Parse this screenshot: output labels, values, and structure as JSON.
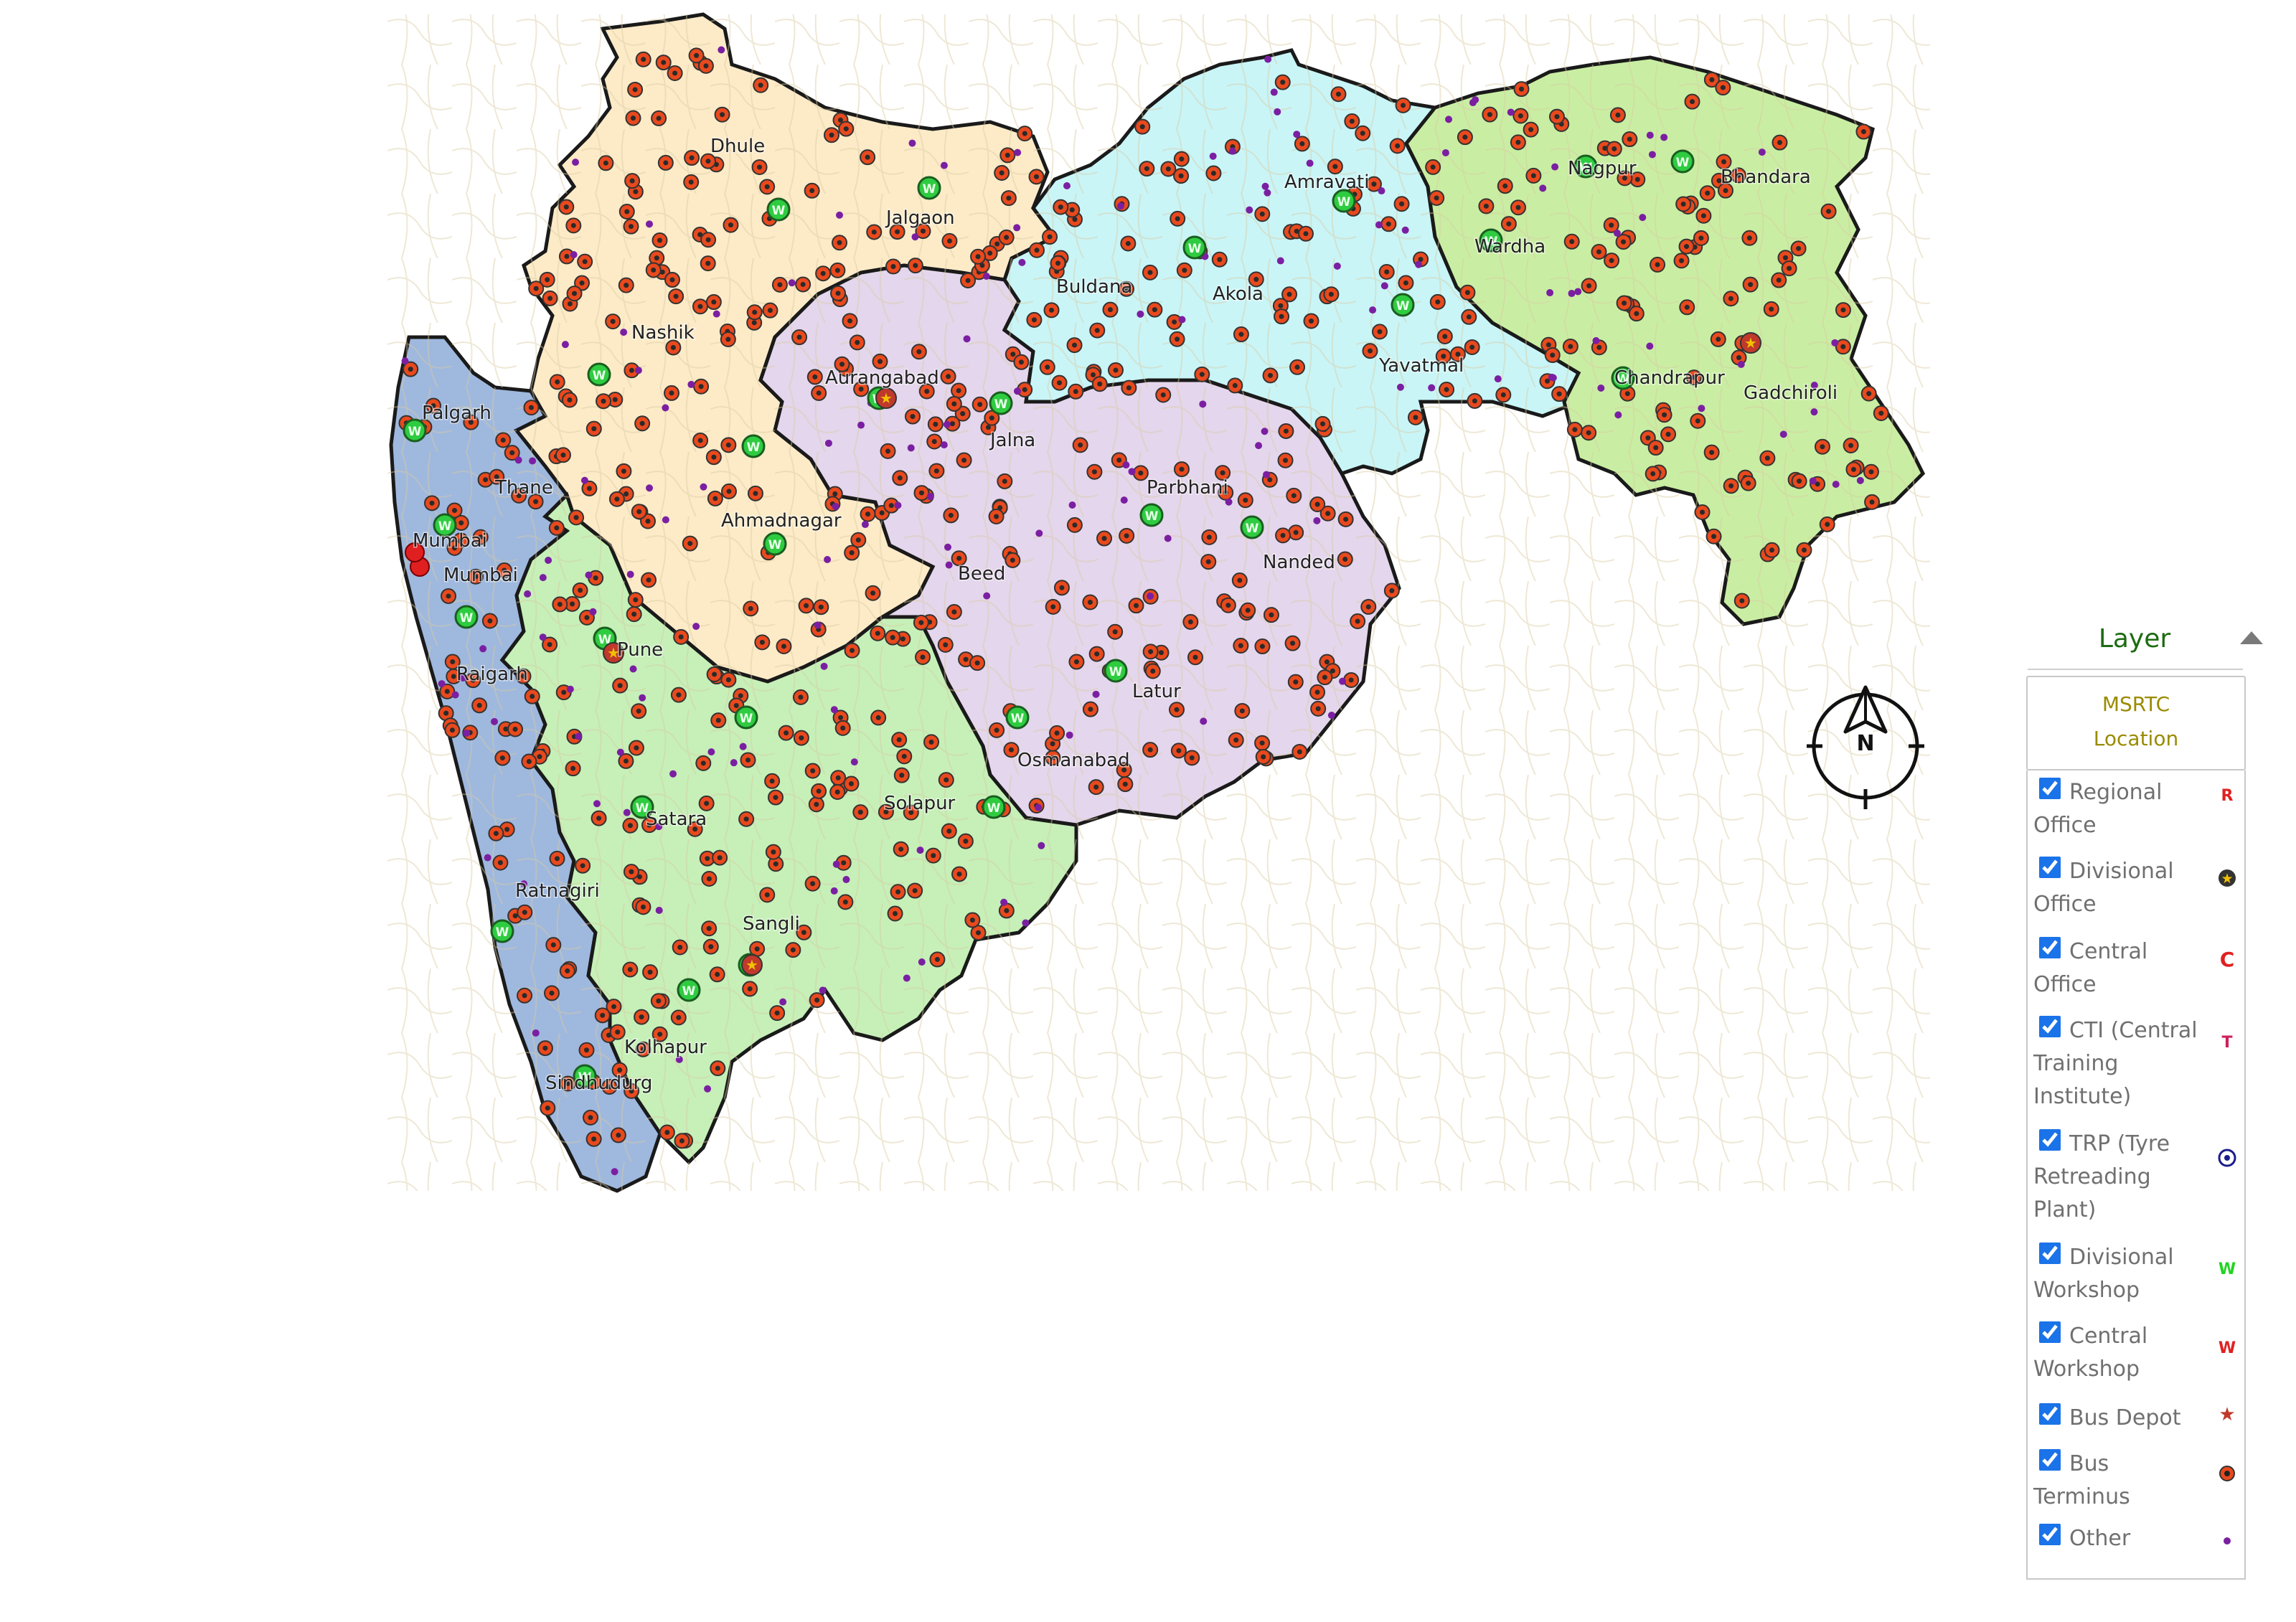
{
  "map": {
    "region_colors": {
      "konkan": "#9fb8de",
      "nashik": "#fdebc8",
      "aurangabad": "#e4d6ec",
      "amravati": "#c9f5f7",
      "nagpur": "#c9eea3",
      "pune": "#c6f0b8",
      "border": "#1a1a1a"
    },
    "cities": [
      "Dhule",
      "Jalgaon",
      "Nashik",
      "Aurangabad",
      "Jalna",
      "Ahmadnagar",
      "Palgarh",
      "Thane",
      "Mumbai",
      "Mumbai",
      "Raigarh",
      "Pune",
      "Satara",
      "Solapur",
      "Sangli",
      "Kolhapur",
      "Sindhudurg",
      "Ratnagiri",
      "Beed",
      "Parbhani",
      "Nanded",
      "Latur",
      "Osmanabad",
      "Buldana",
      "Akola",
      "Amravati",
      "Yavatmal",
      "Wardha",
      "Nagpur",
      "Bhandara",
      "Chandrapur",
      "Gadchiroli"
    ]
  },
  "compass": {
    "label": "N",
    "icon": "north-arrow-icon"
  },
  "layer_panel": {
    "title": "Layer",
    "group": {
      "line1": "MSRTC",
      "line2": "Location"
    },
    "items": [
      {
        "label": "Regional Office",
        "checked": true,
        "symbol": "R",
        "color": "#e02020",
        "icon": "regional-office-icon"
      },
      {
        "label": "Divisional Office",
        "checked": true,
        "symbol": "star-circle",
        "color": "#f2c200",
        "icon": "divisional-office-icon"
      },
      {
        "label": "Central Office",
        "checked": true,
        "symbol": "C",
        "color": "#e02020",
        "icon": "central-office-icon"
      },
      {
        "label": "CTI (Central Training Institute)",
        "checked": true,
        "symbol": "T",
        "color": "#d0205a",
        "icon": "cti-icon"
      },
      {
        "label": "TRP (Tyre Retreading Plant)",
        "checked": true,
        "symbol": "target",
        "color": "#1c1c8c",
        "icon": "trp-icon"
      },
      {
        "label": "Divisional Workshop",
        "checked": true,
        "symbol": "W",
        "color": "#22d422",
        "icon": "divisional-workshop-icon"
      },
      {
        "label": "Central Workshop",
        "checked": true,
        "symbol": "W",
        "color": "#e02020",
        "icon": "central-workshop-icon"
      },
      {
        "label": "Bus Depot",
        "checked": true,
        "symbol": "star",
        "color": "#c0392b",
        "icon": "bus-depot-icon"
      },
      {
        "label": "Bus Terminus",
        "checked": true,
        "symbol": "dot-circle",
        "color": "#e8491d",
        "icon": "bus-terminus-icon"
      },
      {
        "label": "Other",
        "checked": true,
        "symbol": "dot",
        "color": "#7b1fa2",
        "icon": "other-icon"
      }
    ]
  }
}
